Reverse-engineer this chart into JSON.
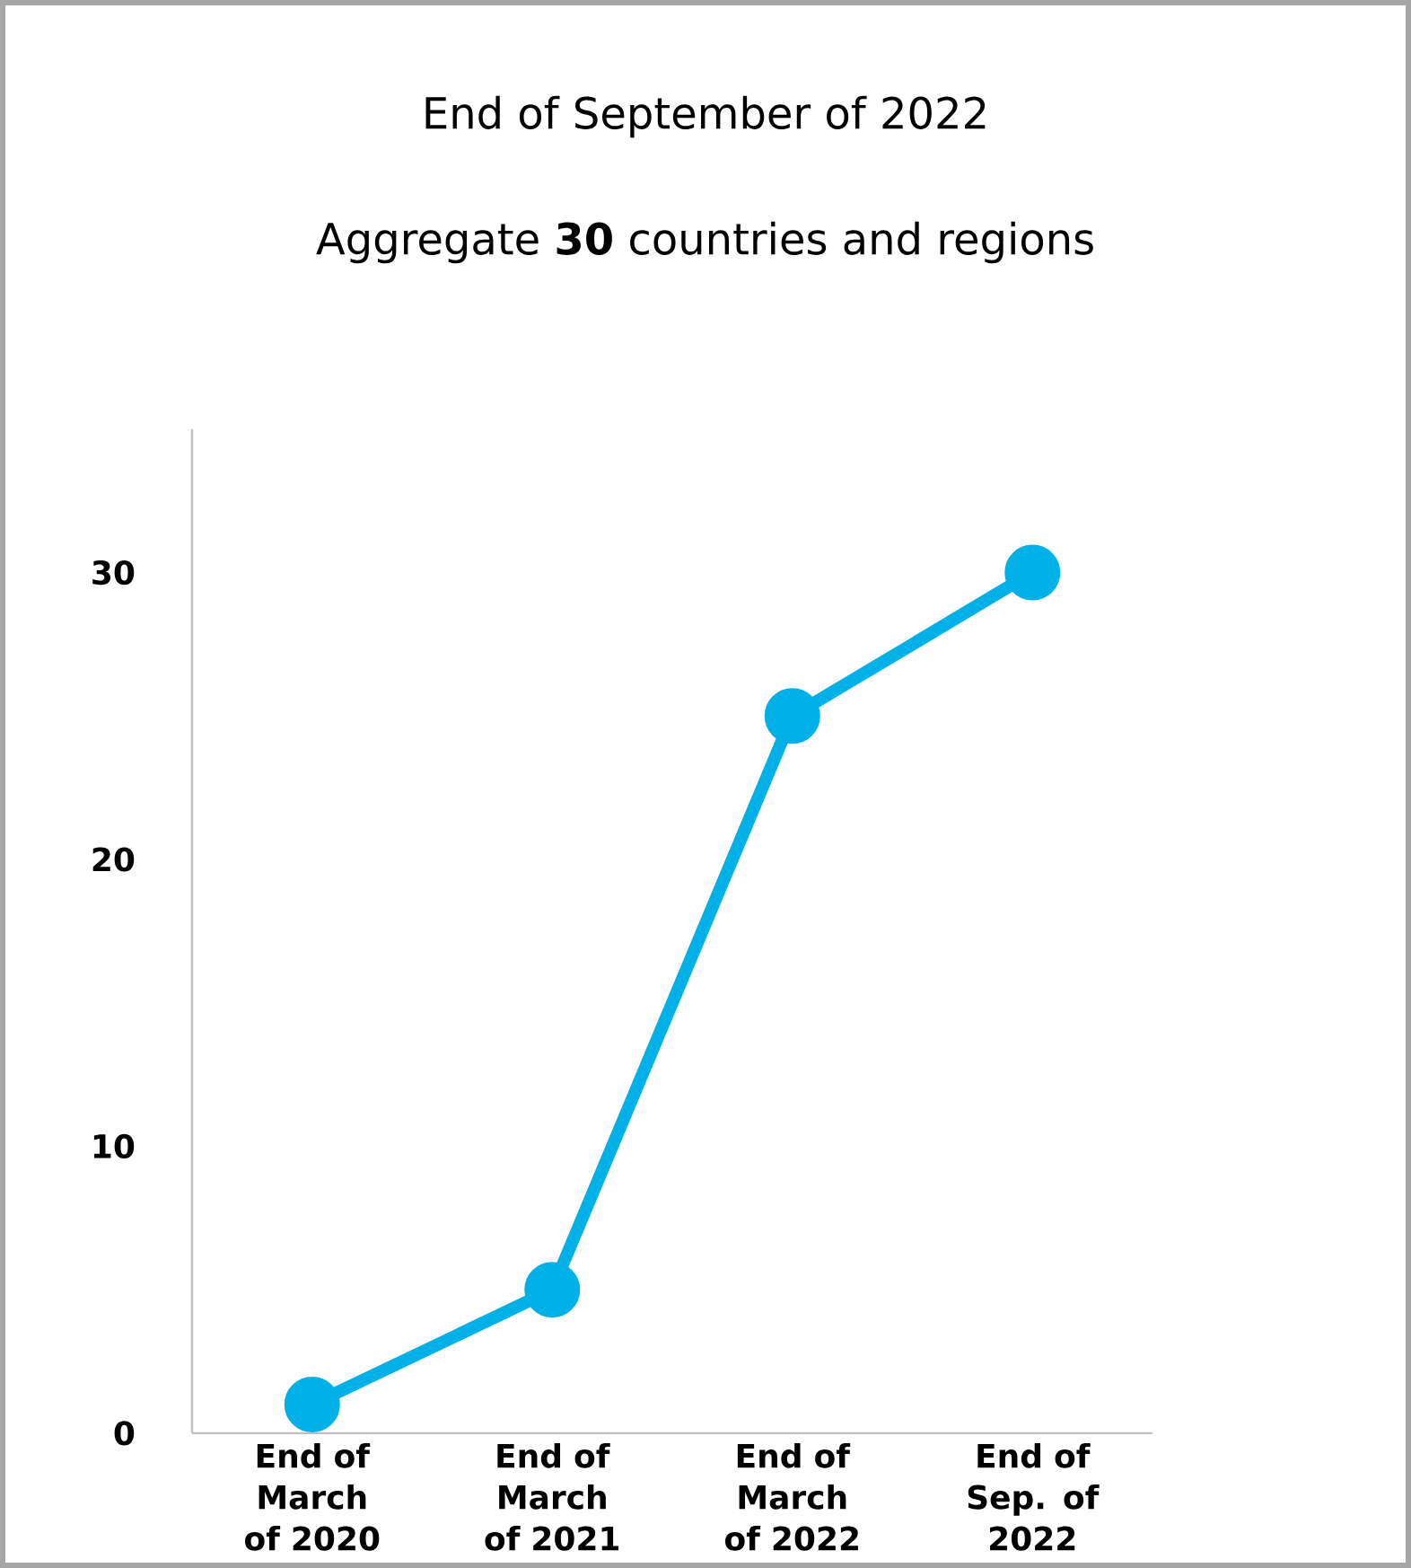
{
  "chart_data": {
    "type": "line",
    "title": "End of September of 2022",
    "subtitle": "Aggregate **30** countries and regions",
    "categories": [
      "End of March of 2020",
      "End of March of 2021",
      "End of March of 2022",
      "End of Sep. of 2022"
    ],
    "values": [
      1,
      5,
      25,
      30
    ],
    "color": "#00b0e6",
    "marker": "circle",
    "ylim": [
      0,
      35
    ],
    "yticks": [
      0,
      10,
      20,
      30
    ]
  }
}
